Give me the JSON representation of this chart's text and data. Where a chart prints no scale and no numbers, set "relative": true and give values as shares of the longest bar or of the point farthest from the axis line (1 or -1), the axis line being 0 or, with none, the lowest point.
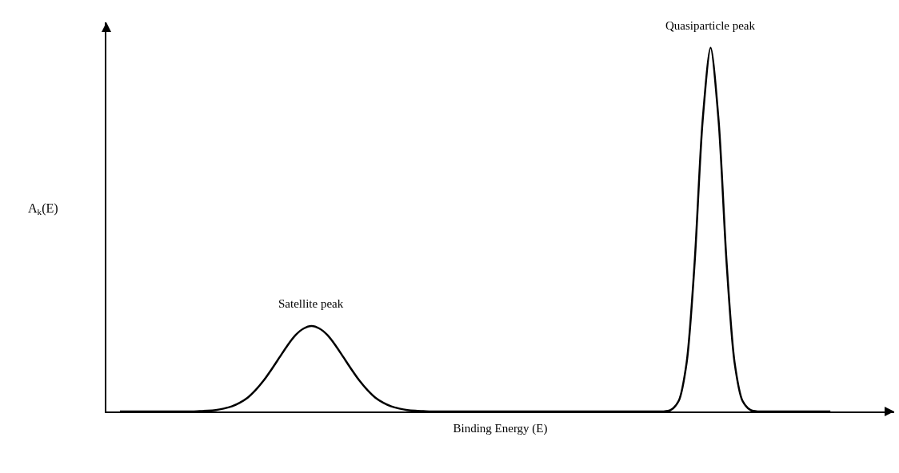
{
  "chart_data": {
    "type": "line",
    "relative": true,
    "xlabel": "Binding Energy (E)",
    "ylabel": "A$_{k}$(E)",
    "categories": [
      null,
      null,
      null,
      null,
      null,
      null,
      null,
      null,
      null,
      null,
      null,
      null,
      null,
      null,
      null,
      null,
      null,
      null,
      null,
      null,
      null,
      null,
      null,
      null,
      null,
      null,
      null,
      null,
      null,
      null,
      null,
      null,
      null,
      null,
      null,
      null,
      null,
      null,
      null,
      null,
      null,
      null,
      null,
      null,
      null,
      null,
      null,
      null,
      null,
      null,
      null,
      null,
      null,
      null,
      null,
      null,
      null,
      null,
      null,
      null,
      null,
      null,
      null,
      null,
      null,
      null,
      null,
      null,
      null,
      null,
      null,
      null,
      null,
      null,
      null,
      null,
      null,
      null,
      null,
      null,
      null,
      null,
      null,
      null,
      null,
      null,
      null,
      null,
      null,
      null
    ],
    "series": [
      {
        "color": "#000000",
        "values": [
          0,
          0,
          0,
          0,
          0,
          0,
          0,
          0,
          0,
          0,
          0.001,
          0.002,
          0.004,
          0.008,
          0.014,
          0.024,
          0.038,
          0.059,
          0.085,
          0.116,
          0.149,
          0.182,
          0.21,
          0.228,
          0.235,
          0.228,
          0.21,
          0.182,
          0.149,
          0.116,
          0.085,
          0.059,
          0.038,
          0.024,
          0.014,
          0.008,
          0.004,
          0.002,
          0.001,
          0,
          0,
          0,
          0,
          0,
          0,
          0,
          0,
          0,
          0,
          0,
          0,
          0,
          0,
          0,
          0,
          0,
          0,
          0,
          0,
          0,
          0,
          0,
          0,
          0,
          0,
          0,
          0,
          0,
          0,
          0.004,
          0.029,
          0.135,
          0.41,
          0.8,
          1,
          0.8,
          0.41,
          0.135,
          0.029,
          0.004,
          0,
          0,
          0,
          0,
          0,
          0,
          0,
          0,
          0,
          0
        ]
      }
    ],
    "annotations": [
      {
        "text": "Satellite peak",
        "y": 0.235
      },
      {
        "text": "Quasiparticle peak",
        "y": 1
      }
    ],
    "marker": "none",
    "line_style": "solid"
  }
}
